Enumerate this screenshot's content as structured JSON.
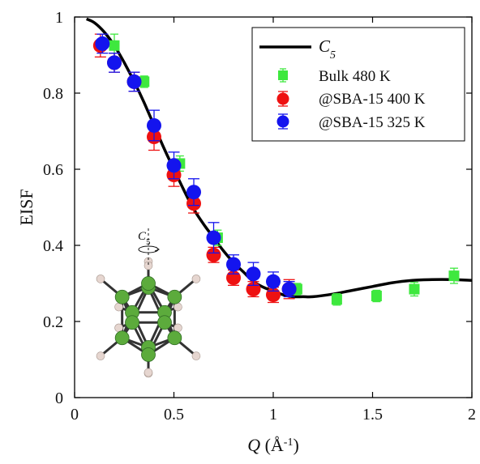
{
  "chart_data": {
    "type": "scatter",
    "xlabel": "Q (Å⁻¹)",
    "xlabel_parts": {
      "symbol": "Q",
      "unit_open": " (Å",
      "unit_exp": "-1",
      "unit_close": ")"
    },
    "ylabel": "EISF",
    "xlim": [
      0,
      2
    ],
    "ylim": [
      0,
      1
    ],
    "x_ticks": [
      0,
      0.5,
      1,
      1.5,
      2
    ],
    "x_tick_labels": [
      "0",
      "0.5",
      "1",
      "1.5",
      "2"
    ],
    "y_ticks": [
      0,
      0.2,
      0.4,
      0.6,
      0.8,
      1
    ],
    "y_tick_labels": [
      "0",
      "0.2",
      "0.4",
      "0.6",
      "0.8",
      "1"
    ],
    "grid": false,
    "legend_position": "top-right",
    "model": {
      "name": "C5",
      "name_parts": {
        "base": "C",
        "sub": "5"
      },
      "color": "#000000",
      "x": [
        0.06,
        0.1,
        0.15,
        0.2,
        0.25,
        0.3,
        0.35,
        0.4,
        0.45,
        0.5,
        0.55,
        0.6,
        0.65,
        0.7,
        0.75,
        0.8,
        0.85,
        0.9,
        0.95,
        1.0,
        1.05,
        1.1,
        1.15,
        1.2,
        1.3,
        1.4,
        1.5,
        1.6,
        1.7,
        1.8,
        1.9,
        2.0
      ],
      "y": [
        0.995,
        0.985,
        0.96,
        0.925,
        0.88,
        0.83,
        0.775,
        0.715,
        0.655,
        0.6,
        0.545,
        0.495,
        0.455,
        0.42,
        0.385,
        0.355,
        0.33,
        0.305,
        0.29,
        0.28,
        0.27,
        0.265,
        0.265,
        0.265,
        0.272,
        0.282,
        0.292,
        0.302,
        0.308,
        0.31,
        0.31,
        0.308
      ]
    },
    "series": [
      {
        "name": "Bulk 480 K",
        "marker": "square",
        "color": "#3ee83e",
        "x": [
          0.2,
          0.35,
          0.53,
          0.72,
          1.12,
          1.32,
          1.52,
          1.71,
          1.91
        ],
        "y": [
          0.925,
          0.83,
          0.615,
          0.42,
          0.285,
          0.258,
          0.267,
          0.285,
          0.32
        ],
        "err": [
          0.03,
          0.015,
          0.02,
          0.02,
          0.015,
          0.015,
          0.015,
          0.018,
          0.02
        ]
      },
      {
        "name": "@SBA-15 400 K",
        "marker": "circle",
        "color": "#ee1111",
        "x": [
          0.13,
          0.2,
          0.3,
          0.4,
          0.5,
          0.6,
          0.7,
          0.8,
          0.9,
          1.0,
          1.08
        ],
        "y": [
          0.925,
          0.88,
          0.83,
          0.685,
          0.585,
          0.51,
          0.375,
          0.315,
          0.285,
          0.27,
          0.285
        ],
        "err": [
          0.03,
          0.025,
          0.025,
          0.035,
          0.03,
          0.025,
          0.02,
          0.02,
          0.02,
          0.02,
          0.025
        ]
      },
      {
        "name": "@SBA-15 325 K",
        "marker": "circle",
        "color": "#1414ee",
        "x": [
          0.14,
          0.2,
          0.3,
          0.4,
          0.5,
          0.6,
          0.7,
          0.8,
          0.9,
          1.0,
          1.08
        ],
        "y": [
          0.93,
          0.88,
          0.83,
          0.715,
          0.61,
          0.54,
          0.42,
          0.35,
          0.325,
          0.305,
          0.285
        ],
        "err": [
          0.025,
          0.025,
          0.025,
          0.04,
          0.035,
          0.035,
          0.04,
          0.025,
          0.03,
          0.025,
          0.02
        ]
      }
    ],
    "inset": {
      "label_parts": {
        "base": "C",
        "sub": "5"
      },
      "carbon_color": "#5cab3c",
      "hydrogen_color": "#e6d6d0",
      "bond_color": "#333333"
    }
  }
}
